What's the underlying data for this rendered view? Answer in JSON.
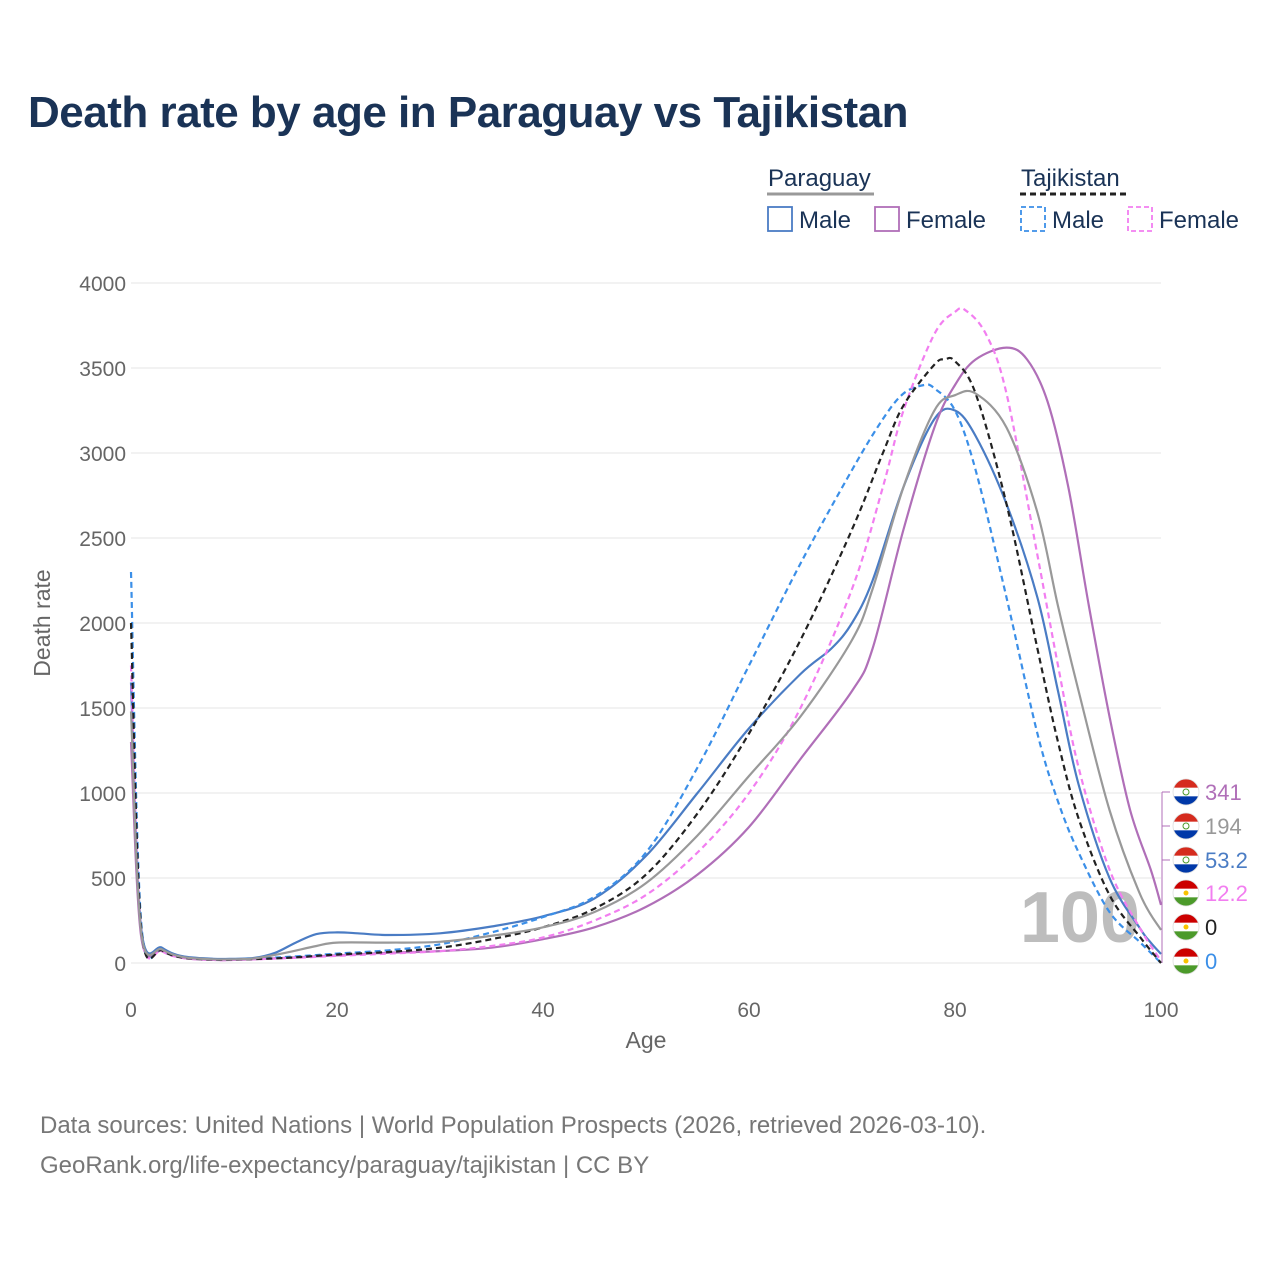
{
  "title": "Death rate by age in Paraguay vs Tajikistan",
  "legend": {
    "groups": [
      {
        "name": "Paraguay",
        "style": "solid",
        "color": "#999999",
        "items": [
          {
            "label": "Male",
            "color": "#4a7cc4"
          },
          {
            "label": "Female",
            "color": "#b06fb8"
          }
        ]
      },
      {
        "name": "Tajikistan",
        "style": "dashed",
        "color": "#222222",
        "items": [
          {
            "label": "Male",
            "color": "#3b8fe8"
          },
          {
            "label": "Female",
            "color": "#f27ef0"
          }
        ]
      }
    ]
  },
  "source": {
    "line1": "Data sources: United Nations | World Population Prospects (2026, retrieved 2026-03-10).",
    "line2": "GeoRank.org/life-expectancy/paraguay/tajikistan | CC BY"
  },
  "chart_data": {
    "type": "line",
    "title": "Death rate by age in Paraguay vs Tajikistan",
    "xlabel": "Age",
    "ylabel": "Death rate",
    "xlim": [
      0,
      100
    ],
    "ylim": [
      0,
      4000
    ],
    "xticks": [
      0,
      20,
      40,
      60,
      80,
      100
    ],
    "yticks": [
      0,
      500,
      1000,
      1500,
      2000,
      2500,
      3000,
      3500,
      4000
    ],
    "grid": true,
    "watermark": "100",
    "series": [
      {
        "name": "Paraguay Male",
        "country": "Paraguay",
        "sex": "Male",
        "color": "#4a7cc4",
        "dash": false,
        "x": [
          0,
          1,
          3,
          5,
          8,
          10,
          12,
          14,
          16,
          18,
          20,
          22,
          25,
          30,
          35,
          40,
          45,
          50,
          55,
          60,
          65,
          68,
          70,
          72,
          75,
          78,
          80,
          82,
          85,
          88,
          90,
          92,
          95,
          98,
          99,
          100
        ],
        "y": [
          1650,
          200,
          90,
          40,
          25,
          25,
          30,
          60,
          120,
          170,
          180,
          175,
          165,
          175,
          215,
          275,
          380,
          630,
          1000,
          1380,
          1700,
          1850,
          2000,
          2250,
          2800,
          3200,
          3250,
          3100,
          2700,
          2150,
          1600,
          1050,
          500,
          200,
          120,
          53.2
        ]
      },
      {
        "name": "Paraguay Female",
        "country": "Paraguay",
        "sex": "Female",
        "color": "#b06fb8",
        "dash": false,
        "x": [
          0,
          1,
          3,
          5,
          8,
          10,
          15,
          20,
          25,
          30,
          35,
          40,
          45,
          50,
          55,
          60,
          65,
          70,
          72,
          75,
          78,
          80,
          82,
          85,
          87,
          89,
          91,
          93,
          95,
          97,
          99,
          100
        ],
        "y": [
          1300,
          150,
          70,
          30,
          18,
          18,
          30,
          45,
          60,
          70,
          90,
          140,
          210,
          330,
          520,
          800,
          1200,
          1600,
          1850,
          2550,
          3150,
          3400,
          3550,
          3620,
          3550,
          3300,
          2800,
          2100,
          1450,
          900,
          550,
          341
        ]
      },
      {
        "name": "Tajikistan Male",
        "country": "Tajikistan",
        "sex": "Male",
        "color": "#3b8fe8",
        "dash": true,
        "x": [
          0,
          1,
          3,
          5,
          8,
          10,
          15,
          20,
          25,
          30,
          35,
          40,
          45,
          50,
          55,
          60,
          65,
          70,
          73,
          75,
          77,
          78,
          80,
          82,
          85,
          88,
          90,
          92,
          95,
          98,
          100
        ],
        "y": [
          2300,
          230,
          80,
          35,
          22,
          22,
          35,
          55,
          75,
          110,
          180,
          270,
          390,
          650,
          1150,
          1750,
          2350,
          2900,
          3200,
          3350,
          3400,
          3380,
          3250,
          2900,
          2150,
          1350,
          950,
          650,
          300,
          120,
          0
        ]
      },
      {
        "name": "Tajikistan Female",
        "country": "Tajikistan",
        "sex": "Female",
        "color": "#f27ef0",
        "dash": true,
        "x": [
          0,
          1,
          3,
          5,
          8,
          10,
          15,
          20,
          25,
          30,
          35,
          40,
          45,
          50,
          55,
          60,
          65,
          70,
          73,
          75,
          78,
          80,
          81,
          83,
          85,
          88,
          90,
          92,
          95,
          98,
          100
        ],
        "y": [
          1750,
          180,
          70,
          30,
          18,
          18,
          28,
          42,
          55,
          70,
          100,
          150,
          250,
          400,
          650,
          1000,
          1500,
          2200,
          2800,
          3250,
          3700,
          3830,
          3840,
          3700,
          3350,
          2400,
          1750,
          1150,
          550,
          200,
          12.2
        ]
      },
      {
        "name": "Tajikistan Total",
        "country": "Tajikistan",
        "sex": "Total",
        "color": "#222222",
        "dash": true,
        "x": [
          0,
          1,
          3,
          5,
          8,
          10,
          15,
          20,
          25,
          30,
          35,
          40,
          45,
          50,
          55,
          60,
          65,
          70,
          73,
          75,
          78,
          79,
          80,
          82,
          85,
          88,
          90,
          92,
          95,
          98,
          100
        ],
        "y": [
          2000,
          200,
          75,
          32,
          20,
          20,
          30,
          50,
          65,
          90,
          140,
          210,
          320,
          520,
          880,
          1350,
          1900,
          2550,
          3000,
          3280,
          3520,
          3550,
          3540,
          3350,
          2700,
          1850,
          1300,
          850,
          400,
          150,
          0
        ]
      },
      {
        "name": "Paraguay Total",
        "country": "Paraguay",
        "sex": "Total",
        "color": "#999999",
        "dash": false,
        "x": [
          0,
          1,
          3,
          5,
          8,
          10,
          12,
          15,
          18,
          20,
          25,
          30,
          35,
          40,
          45,
          50,
          55,
          60,
          65,
          70,
          72,
          75,
          78,
          80,
          82,
          85,
          88,
          90,
          92,
          95,
          98,
          100
        ],
        "y": [
          1480,
          175,
          80,
          35,
          22,
          22,
          27,
          60,
          100,
          120,
          120,
          125,
          160,
          210,
          300,
          470,
          750,
          1100,
          1450,
          1900,
          2200,
          2800,
          3250,
          3340,
          3350,
          3150,
          2650,
          2100,
          1600,
          900,
          400,
          194
        ]
      }
    ],
    "end_labels": [
      {
        "text": "341",
        "color": "#b06fb8"
      },
      {
        "text": "194",
        "color": "#999999"
      },
      {
        "text": "53.2",
        "color": "#4a7cc4"
      },
      {
        "text": "12.2",
        "color": "#f27ef0"
      },
      {
        "text": "0",
        "color": "#222222"
      },
      {
        "text": "0",
        "color": "#3b8fe8"
      }
    ],
    "end_flags": [
      "Paraguay",
      "Paraguay",
      "Paraguay",
      "Tajikistan",
      "Tajikistan",
      "Tajikistan"
    ]
  }
}
